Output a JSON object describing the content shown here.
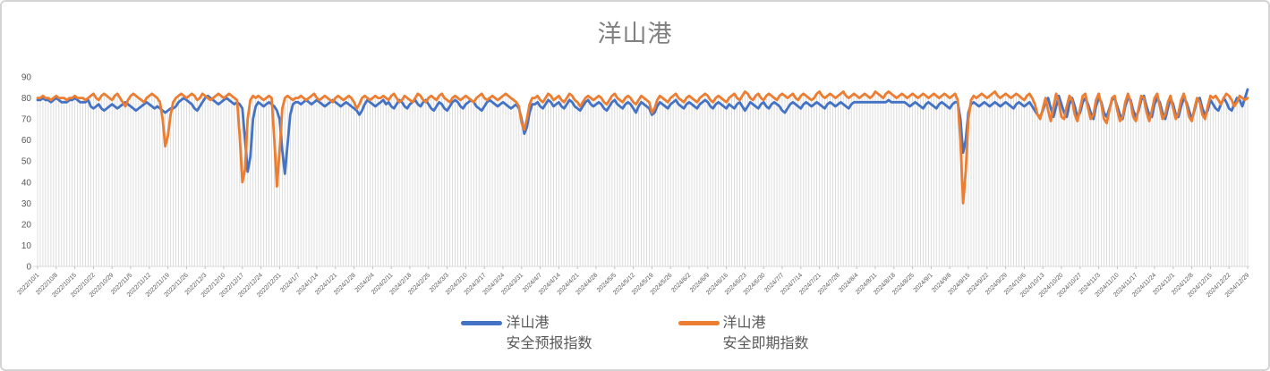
{
  "chart_data": {
    "type": "line",
    "title": "洋山港",
    "xlabel": "",
    "ylabel": "",
    "ylim": [
      0,
      90
    ],
    "y_ticks": [
      0,
      10,
      20,
      30,
      40,
      50,
      60,
      70,
      80,
      90
    ],
    "grid": "vertical category droplines only, no horizontal gridlines",
    "legend_position": "bottom",
    "x_label_interval": 7,
    "x_tick_labels": [
      "2022/10/1",
      "2022/10/8",
      "2022/10/15",
      "2022/10/22",
      "2022/10/29",
      "2022/11/5",
      "2022/11/12",
      "2022/11/19",
      "2022/11/26",
      "2022/12/3",
      "2022/12/10",
      "2022/12/17",
      "2022/12/24",
      "2022/12/31",
      "2024/1/7",
      "2024/1/14",
      "2024/1/21",
      "2024/1/28",
      "2024/2/4",
      "2024/2/11",
      "2024/2/18",
      "2024/2/25",
      "2024/3/3",
      "2024/3/10",
      "2024/3/17",
      "2024/3/24",
      "2024/3/31",
      "2024/4/7",
      "2024/4/14",
      "2024/4/21",
      "2024/4/28",
      "2024/5/5",
      "2024/5/12",
      "2024/5/19",
      "2024/5/26",
      "2024/6/2",
      "2024/6/9",
      "2024/6/16",
      "2024/6/23",
      "2024/6/30",
      "2024/7/7",
      "2024/7/14",
      "2024/7/21",
      "2024/7/28",
      "2024/8/4",
      "2024/8/11",
      "2024/8/18",
      "2024/8/25",
      "2024/9/1",
      "2024/9/8",
      "2024/9/15",
      "2024/9/22",
      "2024/9/29",
      "2024/10/6",
      "2024/10/13",
      "2024/10/20",
      "2024/10/27",
      "2024/11/3",
      "2024/11/10",
      "2024/11/17",
      "2024/11/24",
      "2024/12/1",
      "2024/12/8",
      "2024/12/15",
      "2024/12/22",
      "2024/12/29"
    ],
    "legend": [
      {
        "line1": "洋山港",
        "line2": "安全预报指数",
        "color": "#4472C4"
      },
      {
        "line1": "洋山港",
        "line2": "安全即期指数",
        "color": "#ED7D31"
      }
    ],
    "series": [
      {
        "name": "洋山港 安全预报指数",
        "color": "#4472C4",
        "values": [
          79,
          79,
          80,
          79,
          79,
          78,
          79,
          80,
          79,
          78,
          78,
          78,
          79,
          79,
          80,
          79,
          78,
          78,
          78,
          79,
          76,
          75,
          76,
          77,
          75,
          74,
          75,
          76,
          77,
          76,
          75,
          76,
          77,
          78,
          77,
          76,
          75,
          74,
          75,
          76,
          77,
          78,
          77,
          76,
          75,
          76,
          75,
          74,
          73,
          74,
          75,
          75,
          76,
          78,
          79,
          80,
          79,
          78,
          77,
          75,
          74,
          76,
          78,
          80,
          81,
          80,
          79,
          78,
          77,
          78,
          79,
          80,
          79,
          78,
          77,
          78,
          77,
          75,
          60,
          45,
          52,
          70,
          76,
          78,
          77,
          76,
          77,
          78,
          77,
          76,
          74,
          70,
          55,
          44,
          58,
          72,
          77,
          78,
          78,
          77,
          78,
          79,
          78,
          77,
          78,
          79,
          78,
          77,
          76,
          77,
          78,
          79,
          78,
          77,
          76,
          77,
          78,
          77,
          76,
          75,
          74,
          72,
          74,
          77,
          79,
          78,
          77,
          76,
          77,
          78,
          79,
          77,
          78,
          76,
          75,
          77,
          79,
          78,
          76,
          75,
          77,
          78,
          79,
          77,
          76,
          78,
          79,
          77,
          75,
          74,
          76,
          78,
          77,
          75,
          74,
          76,
          78,
          79,
          78,
          76,
          75,
          77,
          78,
          79,
          78,
          76,
          75,
          74,
          76,
          78,
          79,
          78,
          77,
          76,
          77,
          78,
          77,
          76,
          75,
          76,
          77,
          75,
          70,
          63,
          66,
          73,
          77,
          77,
          78,
          76,
          75,
          77,
          79,
          78,
          76,
          77,
          78,
          76,
          75,
          77,
          79,
          78,
          76,
          75,
          74,
          76,
          78,
          79,
          77,
          76,
          77,
          78,
          77,
          75,
          74,
          76,
          78,
          79,
          77,
          76,
          75,
          77,
          78,
          77,
          75,
          73,
          76,
          78,
          77,
          76,
          75,
          72,
          73,
          76,
          78,
          77,
          76,
          75,
          77,
          78,
          79,
          77,
          76,
          75,
          77,
          78,
          77,
          76,
          75,
          77,
          78,
          79,
          78,
          76,
          75,
          77,
          78,
          77,
          76,
          75,
          77,
          76,
          75,
          77,
          78,
          76,
          74,
          76,
          78,
          77,
          76,
          75,
          77,
          78,
          76,
          75,
          77,
          78,
          77,
          76,
          74,
          73,
          75,
          77,
          78,
          77,
          76,
          75,
          77,
          78,
          77,
          76,
          77,
          78,
          77,
          76,
          75,
          77,
          78,
          77,
          76,
          77,
          78,
          77,
          76,
          75,
          77,
          78,
          78,
          78,
          78,
          78,
          78,
          78,
          78,
          78,
          78,
          78,
          78,
          78,
          79,
          78,
          78,
          78,
          78,
          78,
          78,
          77,
          76,
          77,
          78,
          77,
          76,
          75,
          77,
          78,
          77,
          76,
          75,
          77,
          78,
          77,
          76,
          75,
          77,
          78,
          78,
          70,
          54,
          60,
          73,
          77,
          78,
          77,
          76,
          77,
          78,
          77,
          76,
          77,
          78,
          77,
          76,
          77,
          78,
          77,
          76,
          75,
          77,
          78,
          77,
          76,
          77,
          78,
          76,
          74,
          72,
          71,
          74,
          78,
          80,
          75,
          71,
          76,
          81,
          77,
          73,
          71,
          77,
          80,
          76,
          71,
          73,
          78,
          80,
          77,
          73,
          70,
          76,
          80,
          78,
          73,
          71,
          75,
          79,
          80,
          76,
          72,
          70,
          76,
          80,
          79,
          74,
          71,
          74,
          79,
          81,
          76,
          72,
          71,
          77,
          80,
          78,
          73,
          70,
          75,
          80,
          77,
          72,
          71,
          76,
          80,
          78,
          74,
          70,
          74,
          79,
          80,
          75,
          72,
          74,
          79,
          77,
          75,
          74,
          77,
          80,
          78,
          75,
          74,
          77,
          80,
          79,
          76,
          80,
          84
        ]
      },
      {
        "name": "洋山港 安全即期指数",
        "color": "#ED7D31",
        "values": [
          80,
          80,
          81,
          80,
          80,
          79,
          80,
          81,
          80,
          80,
          80,
          79,
          80,
          80,
          81,
          80,
          80,
          80,
          79,
          80,
          81,
          82,
          80,
          79,
          81,
          82,
          81,
          80,
          79,
          81,
          82,
          80,
          78,
          76,
          79,
          81,
          82,
          81,
          80,
          79,
          78,
          80,
          81,
          82,
          81,
          80,
          78,
          70,
          57,
          62,
          72,
          78,
          80,
          81,
          82,
          81,
          80,
          81,
          82,
          81,
          79,
          80,
          82,
          81,
          80,
          79,
          80,
          81,
          82,
          81,
          80,
          81,
          82,
          81,
          80,
          79,
          62,
          40,
          46,
          70,
          79,
          81,
          80,
          81,
          80,
          79,
          80,
          81,
          80,
          60,
          38,
          55,
          75,
          80,
          81,
          80,
          79,
          80,
          80,
          81,
          80,
          79,
          80,
          81,
          82,
          80,
          79,
          80,
          81,
          80,
          79,
          78,
          80,
          81,
          80,
          79,
          80,
          81,
          80,
          78,
          75,
          77,
          80,
          81,
          80,
          79,
          80,
          81,
          80,
          80,
          81,
          80,
          79,
          81,
          82,
          80,
          78,
          79,
          81,
          80,
          79,
          78,
          80,
          82,
          81,
          79,
          78,
          80,
          81,
          80,
          79,
          81,
          82,
          80,
          79,
          78,
          80,
          81,
          80,
          79,
          80,
          81,
          80,
          79,
          78,
          80,
          81,
          82,
          80,
          79,
          80,
          81,
          80,
          79,
          80,
          81,
          82,
          81,
          80,
          79,
          78,
          76,
          68,
          65,
          70,
          77,
          80,
          80,
          81,
          79,
          78,
          80,
          82,
          81,
          79,
          80,
          81,
          79,
          78,
          80,
          82,
          81,
          79,
          78,
          76,
          78,
          80,
          81,
          80,
          79,
          80,
          81,
          80,
          78,
          77,
          79,
          81,
          82,
          80,
          79,
          78,
          80,
          81,
          80,
          78,
          77,
          79,
          81,
          80,
          79,
          78,
          73,
          75,
          79,
          81,
          80,
          79,
          78,
          80,
          81,
          82,
          80,
          79,
          78,
          80,
          81,
          80,
          79,
          78,
          80,
          81,
          82,
          81,
          79,
          78,
          80,
          81,
          80,
          79,
          78,
          80,
          81,
          82,
          80,
          79,
          81,
          83,
          82,
          80,
          79,
          81,
          82,
          80,
          79,
          81,
          82,
          81,
          80,
          79,
          81,
          82,
          81,
          80,
          81,
          82,
          80,
          79,
          81,
          82,
          81,
          80,
          79,
          80,
          82,
          83,
          81,
          80,
          81,
          82,
          81,
          80,
          81,
          82,
          83,
          81,
          80,
          81,
          82,
          81,
          80,
          81,
          82,
          81,
          80,
          81,
          83,
          82,
          81,
          80,
          82,
          83,
          82,
          81,
          80,
          81,
          82,
          81,
          80,
          81,
          82,
          81,
          80,
          81,
          82,
          81,
          80,
          81,
          82,
          81,
          80,
          81,
          82,
          81,
          80,
          81,
          82,
          79,
          60,
          30,
          45,
          70,
          79,
          81,
          80,
          81,
          82,
          81,
          80,
          81,
          82,
          83,
          81,
          80,
          81,
          82,
          81,
          80,
          81,
          82,
          81,
          80,
          79,
          81,
          82,
          80,
          77,
          72,
          70,
          75,
          80,
          74,
          69,
          76,
          82,
          78,
          71,
          70,
          76,
          81,
          79,
          72,
          69,
          75,
          81,
          82,
          75,
          70,
          72,
          79,
          82,
          77,
          70,
          68,
          74,
          80,
          81,
          74,
          69,
          71,
          78,
          82,
          78,
          71,
          69,
          75,
          81,
          80,
          73,
          69,
          74,
          80,
          82,
          76,
          70,
          72,
          78,
          81,
          75,
          70,
          73,
          79,
          82,
          77,
          71,
          69,
          75,
          80,
          78,
          72,
          70,
          76,
          81,
          80,
          81,
          79,
          77,
          80,
          82,
          81,
          79,
          76,
          78,
          81,
          80,
          79,
          80
        ]
      }
    ],
    "style": {
      "dropline_color": "#dcdcdc",
      "axis_line_color": "#d9d9d9",
      "tick_color": "#bfbfbf",
      "axis_label_color": "#595959",
      "title_color": "#808080"
    }
  }
}
